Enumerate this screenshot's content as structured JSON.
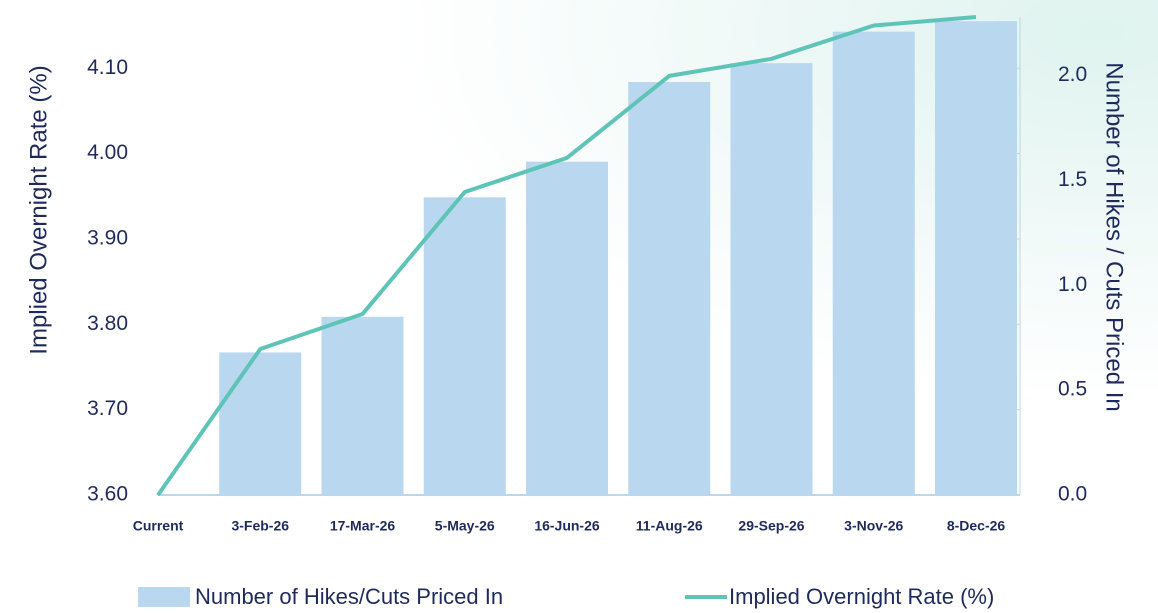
{
  "chart_data": {
    "type": "bar_line",
    "categories": [
      "Current",
      "3-Feb-26",
      "17-Mar-26",
      "5-May-26",
      "16-Jun-26",
      "11-Aug-26",
      "29-Sep-26",
      "3-Nov-26",
      "8-Dec-26"
    ],
    "series": [
      {
        "name": "Number of Hikes/Cuts Priced In",
        "color": "#b9d7ef",
        "axis": "y2",
        "kind": "bar",
        "values": [
          null,
          0.68,
          0.85,
          1.42,
          1.59,
          1.97,
          2.06,
          2.21,
          2.26
        ]
      },
      {
        "name": "Implied Overnight Rate (%)",
        "color": "#5fc4b8",
        "axis": "y",
        "kind": "line",
        "values": [
          3.6,
          3.771,
          3.812,
          3.955,
          3.995,
          4.091,
          4.111,
          4.15,
          4.16
        ]
      }
    ],
    "y_label": "Implied Overnight  Rate (%)",
    "y2_label": "Number of Hikes / Cuts Priced In",
    "ylim": [
      3.6,
      4.16
    ],
    "yticks": [
      {
        "value": 3.6,
        "label": "3.60"
      },
      {
        "value": 3.7,
        "label": "3.70"
      },
      {
        "value": 3.8,
        "label": "3.80"
      },
      {
        "value": 3.9,
        "label": "3.90"
      },
      {
        "value": 4.0,
        "label": "4.00"
      },
      {
        "value": 4.1,
        "label": "4.10"
      }
    ],
    "y2lim": [
      0,
      2.28
    ],
    "y2ticks": [
      {
        "value": 0,
        "label": "0.0"
      },
      {
        "value": 0.5,
        "label": "0.5"
      },
      {
        "value": 1.0,
        "label": "1.0"
      },
      {
        "value": 1.5,
        "label": "1.5"
      },
      {
        "value": 2.0,
        "label": "2.0"
      }
    ],
    "grid": false,
    "legend": "bottom"
  }
}
